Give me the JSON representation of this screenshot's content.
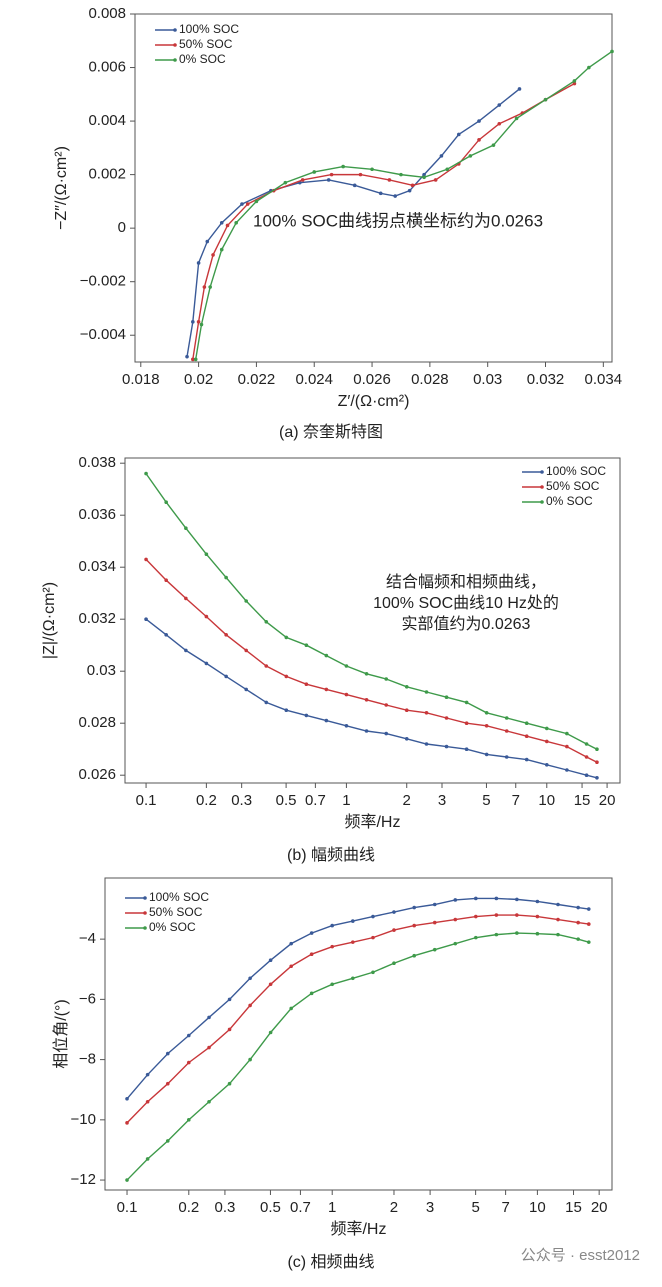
{
  "chart_data": [
    {
      "type": "line",
      "xlim": [
        0.0178,
        0.0343
      ],
      "ylim": [
        -0.005,
        0.008
      ],
      "xticks": [
        0.018,
        0.02,
        0.022,
        0.024,
        0.026,
        0.028,
        0.03,
        0.032,
        0.034
      ],
      "yticks": [
        {
          "value": -0.004,
          "label": "−0.004"
        },
        {
          "value": -0.002,
          "label": "−0.002"
        },
        0,
        0.002,
        0.004,
        0.006,
        0.008
      ],
      "xlabel": "Z′/(Ω·cm²)",
      "ylabel": "−Z″/(Ω·cm²)",
      "legend": "upper left",
      "annotation": "100% SOC曲线拐点横坐标约为0.0263",
      "caption": "(a) 奈奎斯特图",
      "series": [
        {
          "name": "100% SOC",
          "color": "#3a5a98",
          "x": [
            0.0196,
            0.0198,
            0.02,
            0.0203,
            0.0208,
            0.0215,
            0.0225,
            0.0235,
            0.0245,
            0.0254,
            0.0263,
            0.0268,
            0.0273,
            0.0278,
            0.0284,
            0.029,
            0.0297,
            0.0304,
            0.0311
          ],
          "values": [
            -0.0048,
            -0.0035,
            -0.0013,
            -0.0005,
            0.0002,
            0.0009,
            0.0014,
            0.0017,
            0.0018,
            0.0016,
            0.0013,
            0.0012,
            0.0014,
            0.002,
            0.0027,
            0.0035,
            0.004,
            0.0046,
            0.0052
          ]
        },
        {
          "name": "50% SOC",
          "color": "#c8373a",
          "x": [
            0.0198,
            0.02,
            0.0202,
            0.0205,
            0.021,
            0.0217,
            0.0226,
            0.0236,
            0.0246,
            0.0256,
            0.0266,
            0.0274,
            0.0282,
            0.029,
            0.0297,
            0.0304,
            0.0312,
            0.032,
            0.033
          ],
          "values": [
            -0.0049,
            -0.0035,
            -0.0022,
            -0.001,
            0.0001,
            0.0009,
            0.0014,
            0.0018,
            0.002,
            0.002,
            0.0018,
            0.0016,
            0.0018,
            0.0024,
            0.0033,
            0.0039,
            0.0043,
            0.0048,
            0.0054
          ]
        },
        {
          "name": "0% SOC",
          "color": "#3e9a4a",
          "x": [
            0.0199,
            0.0201,
            0.0204,
            0.0208,
            0.0213,
            0.022,
            0.023,
            0.024,
            0.025,
            0.026,
            0.027,
            0.0278,
            0.0286,
            0.0294,
            0.0302,
            0.031,
            0.032,
            0.033,
            0.0335,
            0.0343
          ],
          "values": [
            -0.0049,
            -0.0036,
            -0.0022,
            -0.0008,
            0.0002,
            0.001,
            0.0017,
            0.0021,
            0.0023,
            0.0022,
            0.002,
            0.0019,
            0.0022,
            0.0027,
            0.0031,
            0.0041,
            0.0048,
            0.0055,
            0.006,
            0.0066
          ]
        }
      ]
    },
    {
      "type": "line",
      "xscale": "log",
      "xlim": [
        0.0785,
        23.2
      ],
      "ylim": [
        0.0257,
        0.0382
      ],
      "xticks": [
        0.1,
        0.2,
        0.3,
        0.5,
        0.7,
        1,
        2,
        3,
        5,
        7,
        10,
        15,
        20
      ],
      "yticks": [
        0.026,
        0.028,
        0.03,
        0.032,
        0.034,
        0.036,
        0.038
      ],
      "xlabel": "频率/Hz",
      "ylabel": "|Z|/(Ω·cm²)",
      "legend": "upper right",
      "annotation": [
        "结合幅频和相频曲线，",
        "100% SOC曲线10 Hz处的",
        "实部值约为0.0263"
      ],
      "caption": "(b) 幅频曲线",
      "x": [
        0.1,
        0.126,
        0.158,
        0.2,
        0.251,
        0.316,
        0.398,
        0.501,
        0.631,
        0.794,
        1,
        1.26,
        1.58,
        2,
        2.51,
        3.16,
        3.98,
        5.01,
        6.31,
        7.94,
        10,
        12.6,
        15.8,
        17.8
      ],
      "series": [
        {
          "name": "100% SOC",
          "color": "#3a5a98",
          "values": [
            0.032,
            0.0314,
            0.0308,
            0.0303,
            0.0298,
            0.0293,
            0.0288,
            0.0285,
            0.0283,
            0.0281,
            0.0279,
            0.0277,
            0.0276,
            0.0274,
            0.0272,
            0.0271,
            0.027,
            0.0268,
            0.0267,
            0.0266,
            0.0264,
            0.0262,
            0.026,
            0.0259
          ]
        },
        {
          "name": "50% SOC",
          "color": "#c8373a",
          "values": [
            0.0343,
            0.0335,
            0.0328,
            0.0321,
            0.0314,
            0.0308,
            0.0302,
            0.0298,
            0.0295,
            0.0293,
            0.0291,
            0.0289,
            0.0287,
            0.0285,
            0.0284,
            0.0282,
            0.028,
            0.0279,
            0.0277,
            0.0275,
            0.0273,
            0.0271,
            0.0267,
            0.0265
          ]
        },
        {
          "name": "0% SOC",
          "color": "#3e9a4a",
          "values": [
            0.0376,
            0.0365,
            0.0355,
            0.0345,
            0.0336,
            0.0327,
            0.0319,
            0.0313,
            0.031,
            0.0306,
            0.0302,
            0.0299,
            0.0297,
            0.0294,
            0.0292,
            0.029,
            0.0288,
            0.0284,
            0.0282,
            0.028,
            0.0278,
            0.0276,
            0.0272,
            0.027
          ]
        }
      ]
    },
    {
      "type": "line",
      "xscale": "log",
      "xlim": [
        0.0781,
        23.1
      ],
      "ylim": [
        -12.33,
        -1.97
      ],
      "xticks": [
        0.1,
        0.2,
        0.3,
        0.5,
        0.7,
        1,
        2,
        3,
        5,
        7,
        10,
        15,
        20
      ],
      "yticks": [
        {
          "value": -12,
          "label": "−12"
        },
        {
          "value": -10,
          "label": "−10"
        },
        {
          "value": -8,
          "label": "−8"
        },
        {
          "value": -6,
          "label": "−6"
        },
        {
          "value": -4,
          "label": "−4"
        }
      ],
      "xlabel": "频率/Hz",
      "ylabel": "相位角/(°)",
      "legend": "upper left",
      "caption": "(c) 相频曲线",
      "x": [
        0.1,
        0.126,
        0.158,
        0.2,
        0.251,
        0.316,
        0.398,
        0.501,
        0.631,
        0.794,
        1,
        1.26,
        1.58,
        2,
        2.51,
        3.16,
        3.98,
        5.01,
        6.31,
        7.94,
        10,
        12.6,
        15.8,
        17.8
      ],
      "series": [
        {
          "name": "100% SOC",
          "color": "#3a5a98",
          "values": [
            -9.3,
            -8.5,
            -7.8,
            -7.2,
            -6.6,
            -6.0,
            -5.3,
            -4.7,
            -4.15,
            -3.8,
            -3.55,
            -3.4,
            -3.25,
            -3.1,
            -2.95,
            -2.85,
            -2.7,
            -2.65,
            -2.65,
            -2.68,
            -2.75,
            -2.85,
            -2.95,
            -3.0
          ]
        },
        {
          "name": "50% SOC",
          "color": "#c8373a",
          "values": [
            -10.1,
            -9.4,
            -8.8,
            -8.1,
            -7.6,
            -7.0,
            -6.2,
            -5.5,
            -4.9,
            -4.5,
            -4.25,
            -4.1,
            -3.95,
            -3.7,
            -3.55,
            -3.45,
            -3.35,
            -3.25,
            -3.2,
            -3.2,
            -3.25,
            -3.35,
            -3.45,
            -3.5
          ]
        },
        {
          "name": "0% SOC",
          "color": "#3e9a4a",
          "values": [
            -12.0,
            -11.3,
            -10.7,
            -10.0,
            -9.4,
            -8.8,
            -8.0,
            -7.1,
            -6.3,
            -5.8,
            -5.5,
            -5.3,
            -5.1,
            -4.8,
            -4.55,
            -4.35,
            -4.15,
            -3.95,
            -3.85,
            -3.8,
            -3.82,
            -3.85,
            -4.0,
            -4.1
          ]
        }
      ]
    }
  ],
  "watermark": "公众号 · esst2012"
}
